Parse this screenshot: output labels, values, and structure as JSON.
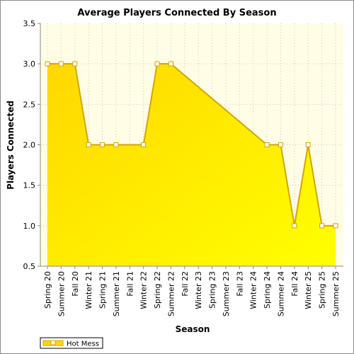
{
  "chart_data": {
    "type": "area",
    "title": "Average Players Connected By Season",
    "xlabel": "Season",
    "ylabel": "Players Connected",
    "ylim": [
      0.5,
      3.5
    ],
    "yticks": [
      "0.5",
      "1.0",
      "1.5",
      "2.0",
      "2.5",
      "3.0",
      "3.5"
    ],
    "categories": [
      "Spring 20",
      "Summer 20",
      "Fall 20",
      "Winter 21",
      "Spring 21",
      "Summer 21",
      "Fall 21",
      "Winter 22",
      "Spring 22",
      "Summer 22",
      "Fall 22",
      "Winter 23",
      "Spring 23",
      "Summer 23",
      "Fall 23",
      "Winter 24",
      "Spring 24",
      "Summer 24",
      "Fall 24",
      "Winter 25",
      "Spring 25",
      "Summer 25"
    ],
    "series": [
      {
        "name": "Hot Mess",
        "values": [
          3,
          3,
          3,
          2,
          2,
          2,
          null,
          2,
          3,
          3,
          null,
          null,
          null,
          null,
          null,
          null,
          2,
          2,
          1,
          2,
          1,
          1
        ]
      }
    ],
    "legend": "bottom-left",
    "grid": true,
    "colors": {
      "plot_background": "#fffde6",
      "fill_top": "#ffd700",
      "fill_bottom": "#ffff00",
      "line": "#d4a500",
      "marker_fill": "#ffffff",
      "grid": "#c8c8c8"
    }
  }
}
